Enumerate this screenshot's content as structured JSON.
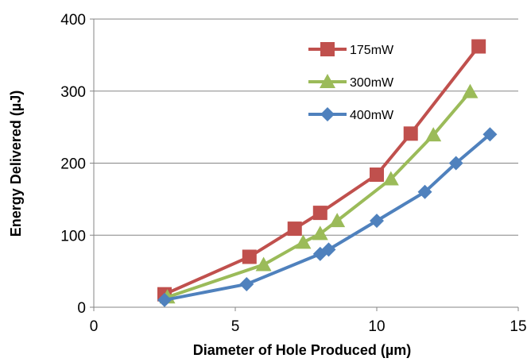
{
  "chart_data": {
    "type": "line",
    "title": "",
    "xlabel": "Diameter of Hole Produced (µm)",
    "ylabel": "Energy Delivered (µJ)",
    "xlim": [
      0,
      15
    ],
    "ylim": [
      0,
      400
    ],
    "x_ticks": [
      "0",
      "5",
      "10",
      "15"
    ],
    "y_ticks": [
      "0",
      "100",
      "200",
      "300",
      "400"
    ],
    "grid": "horizontal",
    "legend_position": "top-right",
    "series": [
      {
        "name": "175mW",
        "color": "#c0504d",
        "marker": "square",
        "points": [
          [
            2.5,
            18
          ],
          [
            5.5,
            70
          ],
          [
            7.1,
            109
          ],
          [
            8.0,
            131
          ],
          [
            10.0,
            184
          ],
          [
            11.2,
            241
          ],
          [
            13.6,
            362
          ]
        ]
      },
      {
        "name": "300mW",
        "color": "#9bbb59",
        "marker": "triangle",
        "points": [
          [
            2.6,
            14
          ],
          [
            6.0,
            59
          ],
          [
            7.4,
            90
          ],
          [
            8.0,
            102
          ],
          [
            8.6,
            120
          ],
          [
            10.5,
            178
          ],
          [
            12.0,
            239
          ],
          [
            13.3,
            299
          ]
        ]
      },
      {
        "name": "400mW",
        "color": "#4f81bd",
        "marker": "diamond",
        "points": [
          [
            2.5,
            10
          ],
          [
            5.4,
            32
          ],
          [
            8.0,
            74
          ],
          [
            8.3,
            80
          ],
          [
            10.0,
            120
          ],
          [
            11.7,
            160
          ],
          [
            12.8,
            200
          ],
          [
            14.0,
            240
          ]
        ]
      }
    ]
  }
}
